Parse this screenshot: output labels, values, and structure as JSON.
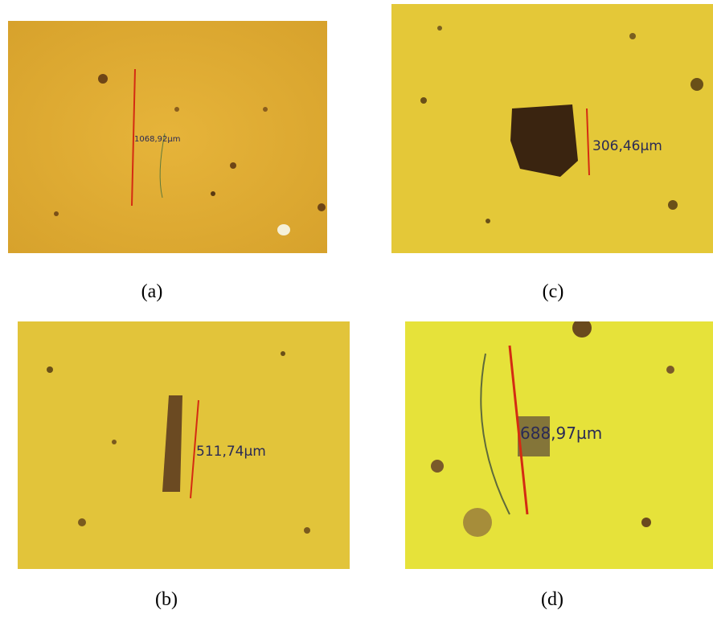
{
  "panels": [
    {
      "label": "(a)",
      "measurement": "1068,92µm"
    },
    {
      "label": "(c)",
      "measurement": "306,46µm"
    },
    {
      "label": "(b)",
      "measurement": "511,74µm"
    },
    {
      "label": "(d)",
      "measurement": "688,97µm"
    }
  ]
}
